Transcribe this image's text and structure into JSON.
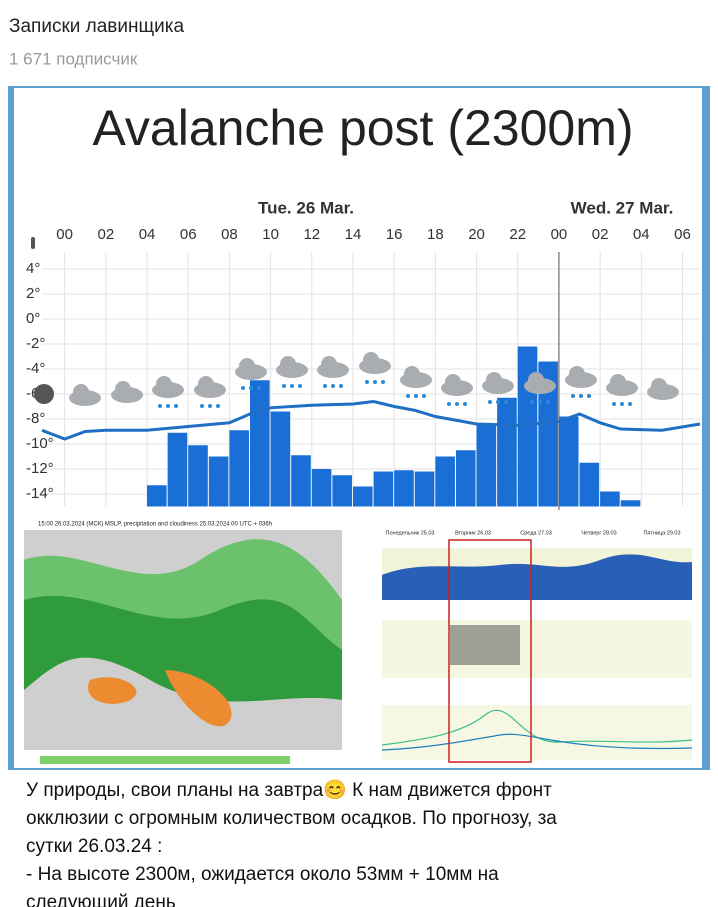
{
  "channel": {
    "name": "Записки лавинщика",
    "subscribers": "1 671 подписчик"
  },
  "chart_data": {
    "type": "bar",
    "title": "Avalanche post (2300m)",
    "day_labels": [
      "Tue. 26 Mar.",
      "Wed. 27 Mar."
    ],
    "x": [
      4.5,
      5.5,
      6.5,
      7.5,
      8.5,
      9.5,
      10.5,
      11.5,
      12.5,
      13.5,
      14.5,
      15.5,
      16.5,
      17.5,
      18.5,
      19.5,
      20.5,
      21.5,
      22.5,
      23.5,
      24.5,
      25.5,
      26.5,
      27.5
    ],
    "values": [
      -13.3,
      -9.1,
      -10.1,
      -11.0,
      -8.9,
      -4.9,
      -7.4,
      -10.9,
      -12.0,
      -12.5,
      -13.4,
      -12.2,
      -12.1,
      -12.2,
      -11.0,
      -10.5,
      -8.4,
      -6.3,
      -2.2,
      -3.4,
      -7.8,
      -11.5,
      -13.8,
      -14.5
    ],
    "color": "#1a6fd6",
    "temperature": {
      "color": "#1f6fc5",
      "x": [
        -1.1,
        0,
        1,
        2,
        4,
        6,
        8,
        9,
        10,
        12,
        14,
        15,
        16,
        17,
        18,
        20,
        22,
        24,
        25,
        26,
        27,
        29,
        30.85
      ],
      "values": [
        -8.9,
        -9.6,
        -9.0,
        -8.9,
        -8.9,
        -8.6,
        -8.3,
        -7.6,
        -7.1,
        -6.9,
        -6.8,
        -6.6,
        -7.0,
        -7.3,
        -7.8,
        -8.4,
        -8.5,
        -8.2,
        -7.6,
        -8.3,
        -8.8,
        -8.9,
        -8.4
      ]
    },
    "xlim": [
      -1.1,
      30.85
    ],
    "ylim": [
      -15,
      5
    ],
    "xticks": [
      {
        "value": 0,
        "label": "00"
      },
      {
        "value": 2,
        "label": "02"
      },
      {
        "value": 4,
        "label": "04"
      },
      {
        "value": 6,
        "label": "06"
      },
      {
        "value": 8,
        "label": "08"
      },
      10,
      12,
      14,
      16,
      18,
      20,
      22,
      {
        "value": 24,
        "label": "00"
      },
      {
        "value": 26,
        "label": "02"
      },
      {
        "value": 28,
        "label": "04"
      },
      {
        "value": 30,
        "label": "06"
      }
    ],
    "yticks": [
      {
        "value": 4,
        "label": "4°"
      },
      {
        "value": 2,
        "label": "2°"
      },
      {
        "value": 0,
        "label": "0°"
      },
      {
        "value": -2,
        "label": "-2°"
      },
      {
        "value": -4,
        "label": "-4°"
      },
      {
        "value": -6,
        "label": "-6°"
      },
      {
        "value": -8,
        "label": "-8°"
      },
      {
        "value": -10,
        "label": "-10°"
      },
      {
        "value": -12,
        "label": "-12°"
      },
      {
        "value": -14,
        "label": "-14°"
      }
    ],
    "grid": true
  },
  "map_panel": {
    "title": "15:00 26.03.2024 (МСК) MSLP, precipitation and cloudiness 25.03.2024 00 UTC + 036h"
  },
  "meteogram_panel": {
    "days": [
      "Понедельник 25.03",
      "Вторник 26.03",
      "Среда 27.03",
      "Четверг 28.03",
      "Пятница 29.03"
    ]
  },
  "post": {
    "lines": [
      "У природы, свои планы на завтра😊 К нам движется фронт",
      "окклюзии с огромным количеством осадков. По прогнозу, за",
      "сутки 26.03.24 :",
      "-  На высоте 2300м, ожидается около 53мм + 10мм на",
      "следующий день"
    ]
  }
}
